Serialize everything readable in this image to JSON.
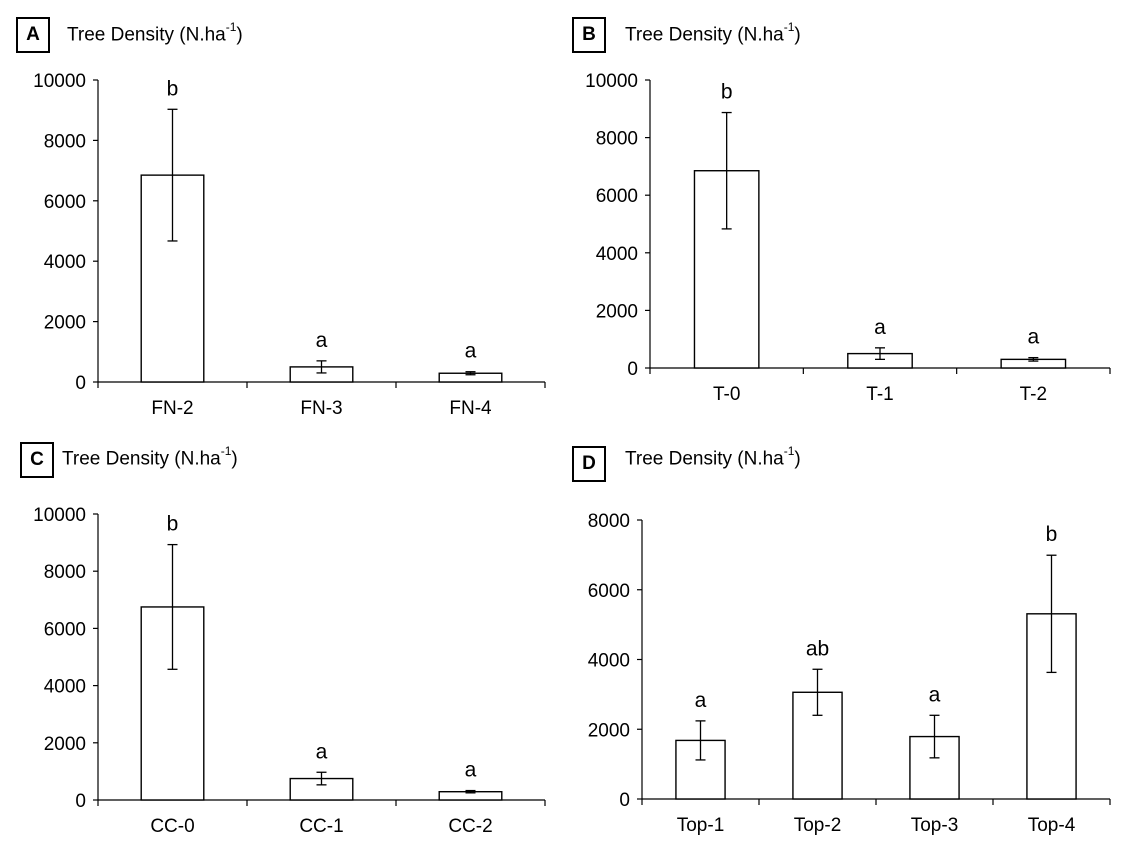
{
  "chart_data": [
    {
      "type": "bar",
      "panel_label": "A",
      "title": "Tree Density (N.ha",
      "title_sup": "-1",
      "title_close": ")",
      "categories": [
        "FN-2",
        "FN-3",
        "FN-4"
      ],
      "values": [
        6850,
        500,
        290
      ],
      "errors": [
        2180,
        200,
        50
      ],
      "significance": [
        "b",
        "a",
        "a"
      ],
      "ylim": [
        0,
        10000
      ],
      "yticks": [
        "0",
        "2000",
        "4000",
        "6000",
        "8000",
        "10000"
      ]
    },
    {
      "type": "bar",
      "panel_label": "B",
      "title": "Tree Density (N.ha",
      "title_sup": "-1",
      "title_close": ")",
      "categories": [
        "T-0",
        "T-1",
        "T-2"
      ],
      "values": [
        6850,
        500,
        300
      ],
      "errors": [
        2020,
        200,
        60
      ],
      "significance": [
        "b",
        "a",
        "a"
      ],
      "ylim": [
        0,
        10000
      ],
      "yticks": [
        "0",
        "2000",
        "4000",
        "6000",
        "8000",
        "10000"
      ]
    },
    {
      "type": "bar",
      "panel_label": "C",
      "title": "Tree Density (N.ha",
      "title_sup": "-1",
      "title_close": ")",
      "categories": [
        "CC-0",
        "CC-1",
        "CC-2"
      ],
      "values": [
        6750,
        750,
        290
      ],
      "errors": [
        2180,
        220,
        40
      ],
      "significance": [
        "b",
        "a",
        "a"
      ],
      "ylim": [
        0,
        10000
      ],
      "yticks": [
        "0",
        "2000",
        "4000",
        "6000",
        "8000",
        "10000"
      ]
    },
    {
      "type": "bar",
      "panel_label": "D",
      "title": "Tree Density (N.ha",
      "title_sup": "-1",
      "title_close": ")",
      "categories": [
        "Top-1",
        "Top-2",
        "Top-3",
        "Top-4"
      ],
      "values": [
        1680,
        3060,
        1790,
        5310
      ],
      "errors": [
        560,
        660,
        610,
        1680
      ],
      "significance": [
        "a",
        "ab",
        "a",
        "b"
      ],
      "ylim": [
        0,
        8000
      ],
      "yticks": [
        "0",
        "2000",
        "4000",
        "6000",
        "8000"
      ]
    }
  ]
}
